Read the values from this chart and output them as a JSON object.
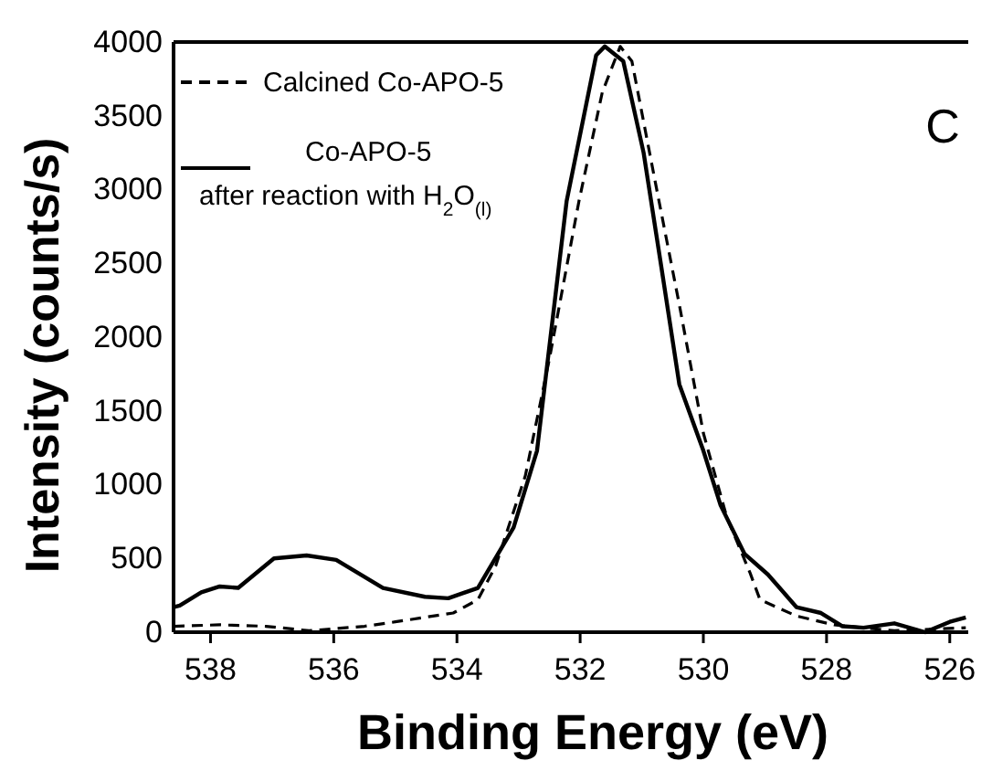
{
  "chart_data": {
    "type": "line",
    "xlabel": "Binding Energy (eV)",
    "ylabel": "Intensity (counts/s)",
    "xlim": [
      538.6,
      525.7
    ],
    "ylim": [
      0,
      4000
    ],
    "xticks": [
      538,
      536,
      534,
      532,
      530,
      528,
      526
    ],
    "yticks": [
      0,
      500,
      1000,
      1500,
      2000,
      2500,
      3000,
      3500,
      4000
    ],
    "grid": false,
    "legend": "top left",
    "annotations": [
      "C"
    ],
    "series": [
      {
        "name": "Calcined Co-APO-5",
        "color": "#000000",
        "line_style": "dashed",
        "x": [
          538.6,
          537.85,
          537.1,
          536.4,
          535.5,
          535.0,
          534.06,
          533.66,
          533.37,
          532.89,
          532.5,
          532.02,
          531.64,
          531.35,
          531.16,
          530.78,
          530.39,
          530.0,
          529.62,
          529.24,
          529.08,
          528.49,
          527.88,
          526.9,
          525.74
        ],
        "values": [
          40,
          50,
          40,
          10,
          40,
          70,
          130,
          220,
          450,
          1060,
          1850,
          2920,
          3660,
          3970,
          3870,
          3050,
          2220,
          1350,
          780,
          400,
          220,
          110,
          50,
          10,
          30
        ]
      },
      {
        "name": "Co-APO-5\nafter reaction with H$_{2}$O$_{(l)}$",
        "color": "#000000",
        "line_style": "solid",
        "x": [
          538.6,
          538.5,
          538.15,
          537.85,
          537.55,
          536.97,
          536.44,
          535.96,
          535.2,
          534.52,
          534.14,
          533.66,
          533.08,
          532.7,
          532.22,
          531.74,
          531.6,
          531.3,
          530.97,
          530.68,
          530.39,
          530.0,
          529.72,
          529.33,
          528.95,
          528.49,
          528.09,
          527.74,
          527.4,
          526.9,
          526.4,
          526.0,
          525.74
        ],
        "values": [
          170,
          180,
          270,
          310,
          300,
          500,
          520,
          490,
          300,
          240,
          230,
          300,
          710,
          1230,
          2920,
          3910,
          3970,
          3870,
          3250,
          2470,
          1680,
          1230,
          860,
          530,
          390,
          170,
          130,
          40,
          30,
          60,
          0,
          70,
          100
        ]
      }
    ]
  }
}
